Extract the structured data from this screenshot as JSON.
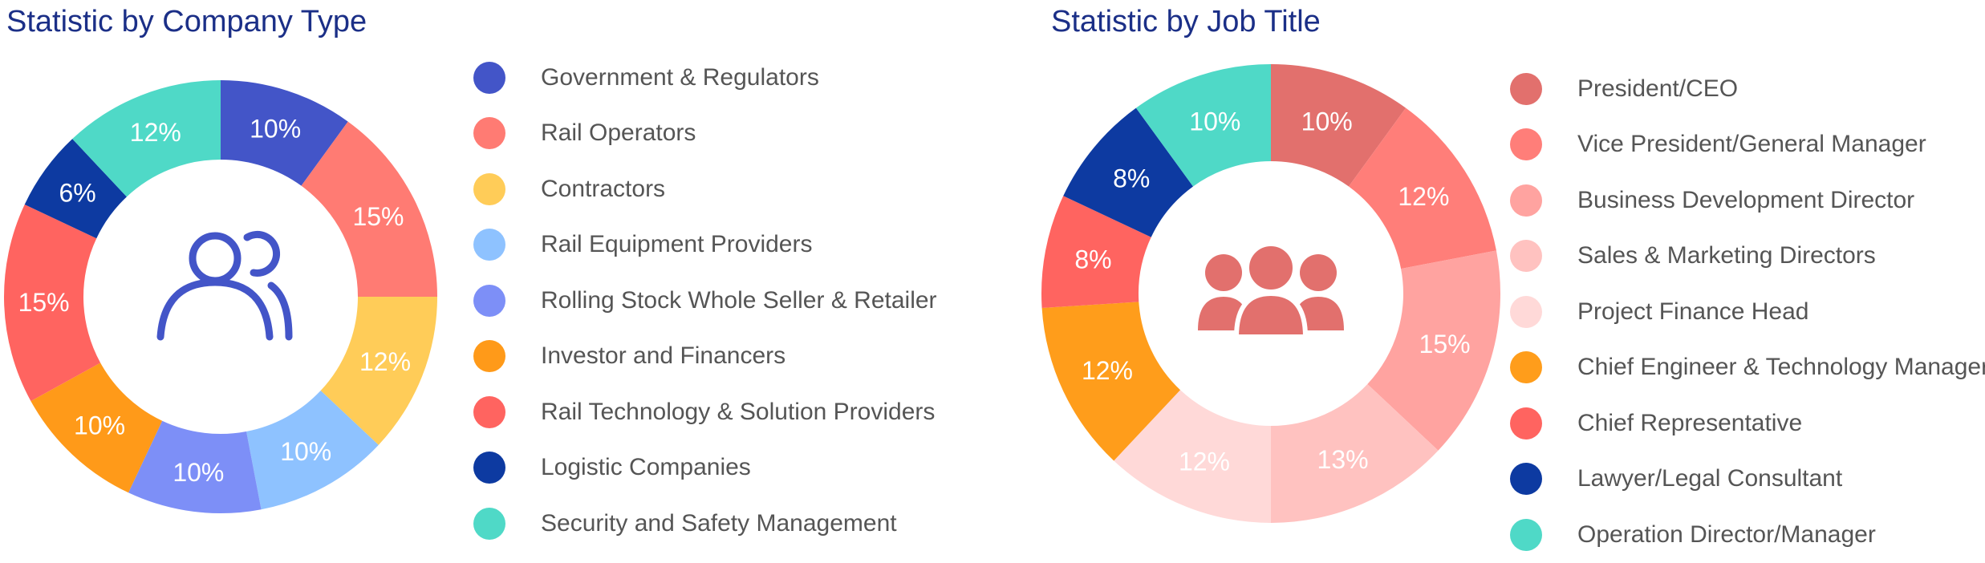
{
  "chart_data": [
    {
      "type": "pie",
      "title": "Statistic by Company Type",
      "center_icon": "users-icon",
      "legend_position": "right",
      "slices": [
        {
          "label": "Government & Regulators",
          "value": 10,
          "value_label": "10%",
          "color": "#4355c8"
        },
        {
          "label": "Rail Operators",
          "value": 15,
          "value_label": "15%",
          "color": "#ff7b73"
        },
        {
          "label": "Contractors",
          "value": 12,
          "value_label": "12%",
          "color": "#ffcc58"
        },
        {
          "label": "Rail Equipment Providers",
          "value": 10,
          "value_label": "10%",
          "color": "#8ec2ff"
        },
        {
          "label": "Rolling Stock Whole Seller & Retailer",
          "value": 10,
          "value_label": "10%",
          "color": "#7d8ff7"
        },
        {
          "label": "Investor and Financers",
          "value": 10,
          "value_label": "10%",
          "color": "#ff9a19"
        },
        {
          "label": "Rail Technology & Solution Providers",
          "value": 15,
          "value_label": "15%",
          "color": "#ff6460"
        },
        {
          "label": "Logistic Companies",
          "value": 6,
          "value_label": "6%",
          "color": "#0d3aa1"
        },
        {
          "label": "Security and Safety Management",
          "value": 12,
          "value_label": "12%",
          "color": "#4fd9c7"
        }
      ]
    },
    {
      "type": "pie",
      "title": "Statistic by Job Title",
      "center_icon": "group-icon",
      "legend_position": "right",
      "slices": [
        {
          "label": "President/CEO",
          "value": 10,
          "value_label": "10%",
          "color": "#e2706d"
        },
        {
          "label": "Vice President/General Manager",
          "value": 12,
          "value_label": "12%",
          "color": "#ff7e79"
        },
        {
          "label": "Business Development Director",
          "value": 15,
          "value_label": "15%",
          "color": "#ffa3a0"
        },
        {
          "label": "Sales & Marketing Directors",
          "value": 13,
          "value_label": "13%",
          "color": "#ffc2c0"
        },
        {
          "label": "Project Finance Head",
          "value": 12,
          "value_label": "12%",
          "color": "#ffd9d8"
        },
        {
          "label": "Chief Engineer & Technology Manager",
          "value": 12,
          "value_label": "12%",
          "color": "#ff9d1b"
        },
        {
          "label": "Chief Representative",
          "value": 8,
          "value_label": "8%",
          "color": "#ff6460"
        },
        {
          "label": "Lawyer/Legal Consultant",
          "value": 8,
          "value_label": "8%",
          "color": "#0d3aa1"
        },
        {
          "label": "Operation Director/Manager",
          "value": 10,
          "value_label": "10%",
          "color": "#4fd9c7"
        }
      ]
    }
  ]
}
